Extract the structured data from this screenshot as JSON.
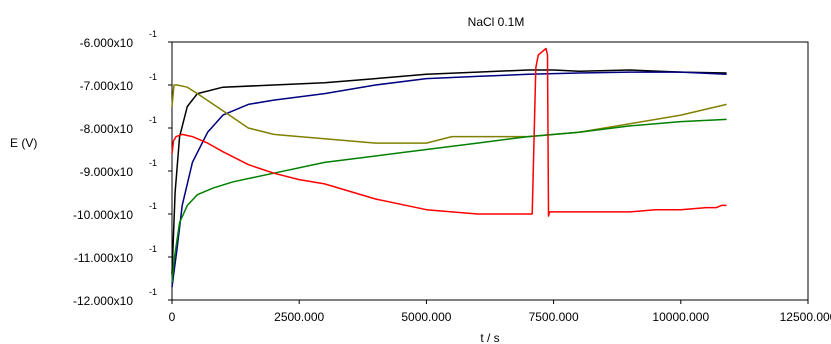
{
  "chart_data": {
    "type": "line",
    "title": "NaCl 0.1M",
    "xlabel": "t / s",
    "ylabel": "E (V)",
    "xlim": [
      0,
      12500
    ],
    "ylim": [
      -1.2,
      -0.6
    ],
    "x_ticks": [
      {
        "value": 0,
        "label": "0"
      },
      {
        "value": 2500,
        "label": "2500.000"
      },
      {
        "value": 5000,
        "label": "5000.000"
      },
      {
        "value": 7500,
        "label": "7500.000"
      },
      {
        "value": 10000,
        "label": "10000.000"
      },
      {
        "value": 12500,
        "label": "12500.000"
      }
    ],
    "y_ticks": [
      {
        "value": -0.6,
        "label": "-6.000x10",
        "exp": "-1"
      },
      {
        "value": -0.7,
        "label": "-7.000x10",
        "exp": "-1"
      },
      {
        "value": -0.8,
        "label": "-8.000x10",
        "exp": "-1"
      },
      {
        "value": -0.9,
        "label": "-9.000x10",
        "exp": "-1"
      },
      {
        "value": -1.0,
        "label": "-10.000x10",
        "exp": "-1"
      },
      {
        "value": -1.1,
        "label": "-11.000x10",
        "exp": "-1"
      },
      {
        "value": -1.2,
        "label": "-12.000x10",
        "exp": "-1"
      }
    ],
    "grid": false,
    "series": [
      {
        "color": "#000000",
        "x": [
          0,
          60,
          150,
          300,
          500,
          1000,
          2000,
          3000,
          4000,
          5000,
          6000,
          7000,
          7500,
          8000,
          9000,
          10000,
          10900
        ],
        "y": [
          -1.14,
          -0.95,
          -0.82,
          -0.75,
          -0.72,
          -0.705,
          -0.7,
          -0.695,
          -0.685,
          -0.675,
          -0.67,
          -0.665,
          -0.665,
          -0.668,
          -0.665,
          -0.67,
          -0.672
        ]
      },
      {
        "color": "#000080",
        "x": [
          0,
          100,
          200,
          400,
          700,
          1000,
          1500,
          2000,
          3000,
          4000,
          5000,
          6000,
          7000,
          8000,
          9000,
          10000,
          10900
        ],
        "y": [
          -1.17,
          -1.08,
          -0.98,
          -0.88,
          -0.81,
          -0.77,
          -0.745,
          -0.735,
          -0.72,
          -0.7,
          -0.685,
          -0.68,
          -0.675,
          -0.672,
          -0.67,
          -0.67,
          -0.675
        ]
      },
      {
        "color": "#808000",
        "x": [
          0,
          40,
          100,
          300,
          500,
          1000,
          1500,
          2000,
          2500,
          3000,
          4000,
          5000,
          5500,
          6000,
          7000,
          8000,
          9000,
          10000,
          10900
        ],
        "y": [
          -0.75,
          -0.7,
          -0.7,
          -0.705,
          -0.72,
          -0.76,
          -0.8,
          -0.815,
          -0.82,
          -0.825,
          -0.835,
          -0.835,
          -0.82,
          -0.82,
          -0.82,
          -0.81,
          -0.79,
          -0.77,
          -0.745
        ]
      },
      {
        "color": "#008000",
        "x": [
          0,
          50,
          150,
          300,
          500,
          800,
          1200,
          1600,
          2000,
          3000,
          4000,
          5000,
          6000,
          7000,
          8000,
          9000,
          10000,
          10900
        ],
        "y": [
          -1.16,
          -1.1,
          -1.02,
          -0.98,
          -0.955,
          -0.94,
          -0.925,
          -0.915,
          -0.905,
          -0.88,
          -0.865,
          -0.85,
          -0.835,
          -0.82,
          -0.81,
          -0.795,
          -0.785,
          -0.78
        ]
      },
      {
        "color": "#ff0000",
        "x": [
          0,
          30,
          80,
          200,
          400,
          700,
          1000,
          1500,
          2000,
          2500,
          3000,
          4000,
          5000,
          6000,
          7000,
          7080,
          7150,
          7200,
          7350,
          7380,
          7400,
          7420,
          7500,
          8000,
          9000,
          9500,
          10000,
          10500,
          10700,
          10800,
          10900
        ],
        "y": [
          -0.86,
          -0.83,
          -0.82,
          -0.815,
          -0.82,
          -0.835,
          -0.855,
          -0.885,
          -0.905,
          -0.92,
          -0.93,
          -0.965,
          -0.99,
          -1.0,
          -1.0,
          -1.0,
          -0.66,
          -0.63,
          -0.615,
          -0.63,
          -1.005,
          -0.995,
          -0.995,
          -0.995,
          -0.995,
          -0.99,
          -0.99,
          -0.985,
          -0.985,
          -0.98,
          -0.98
        ]
      }
    ]
  }
}
